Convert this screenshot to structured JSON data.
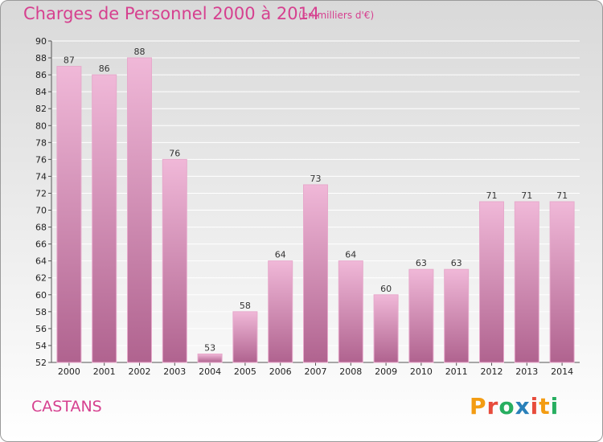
{
  "header": {
    "title": "Charges de Personnel 2000 à 2014",
    "unit": "(en milliers d'€)"
  },
  "footer": {
    "commune": "CASTANS",
    "logo_text": "Proxiti"
  },
  "colors": {
    "accent": "#d6408f",
    "bar_light": "#f0b8d8",
    "bar_dark": "#b0638f",
    "logo_letters": [
      "#f39c12",
      "#e74c3c",
      "#27ae60",
      "#2980b9",
      "#e74c3c",
      "#f39c12",
      "#27ae60"
    ]
  },
  "chart_data": {
    "type": "bar",
    "title": "Charges de Personnel 2000 à 2014",
    "subtitle": "(en milliers d'€)",
    "categories": [
      "2000",
      "2001",
      "2002",
      "2003",
      "2004",
      "2005",
      "2006",
      "2007",
      "2008",
      "2009",
      "2010",
      "2011",
      "2012",
      "2013",
      "2014"
    ],
    "values": [
      87,
      86,
      88,
      76,
      53,
      58,
      64,
      73,
      64,
      60,
      63,
      63,
      71,
      71,
      71
    ],
    "ylim": [
      52,
      90
    ],
    "yticks": [
      52,
      54,
      56,
      58,
      60,
      62,
      64,
      66,
      68,
      70,
      72,
      74,
      76,
      78,
      80,
      82,
      84,
      86,
      88,
      90
    ],
    "grid": true,
    "xlabel": "",
    "ylabel": ""
  }
}
